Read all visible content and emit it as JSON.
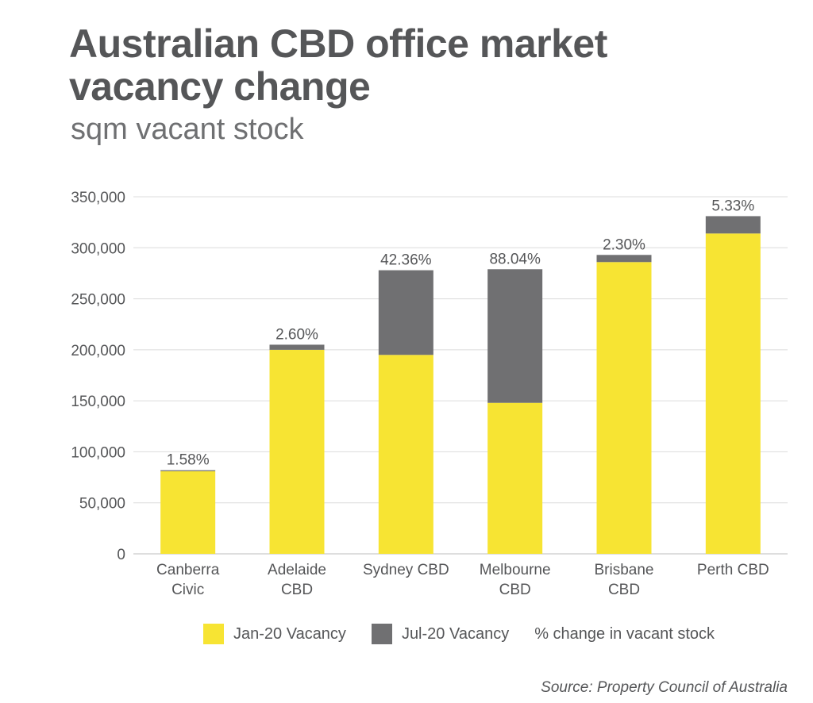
{
  "title_line1": "Australian CBD office market",
  "title_line2": "vacancy change",
  "subtitle": "sqm vacant stock",
  "source": "Source: Property Council of Australia",
  "colors": {
    "jan": "#f7e433",
    "jul": "#707072",
    "grid": "#dcdcdc",
    "text": "#555658"
  },
  "chart_data": {
    "type": "bar",
    "stacked": true,
    "title": "Australian CBD office market vacancy change",
    "subtitle": "sqm vacant stock",
    "categories": [
      [
        "Canberra",
        "Civic"
      ],
      [
        "Adelaide",
        "CBD"
      ],
      [
        "Sydney CBD"
      ],
      [
        "Melbourne",
        "CBD"
      ],
      [
        "Brisbane",
        "CBD"
      ],
      [
        "Perth CBD"
      ]
    ],
    "series": [
      {
        "name": "Jan-20 Vacancy",
        "values": [
          81000,
          200000,
          195000,
          148000,
          286000,
          314000
        ]
      },
      {
        "name": "Jul-20 Vacancy",
        "values": [
          1000,
          5000,
          83000,
          131000,
          7000,
          17000
        ]
      }
    ],
    "annotations": {
      "name": "% change in vacant stock",
      "values": [
        "1.58%",
        "2.60%",
        "42.36%",
        "88.04%",
        "2.30%",
        "5.33%"
      ]
    },
    "ylim": [
      0,
      350000
    ],
    "yticks": [
      0,
      50000,
      100000,
      150000,
      200000,
      250000,
      300000,
      350000
    ],
    "ytick_labels": [
      "0",
      "50,000",
      "100,000",
      "150,000",
      "200,000",
      "250,000",
      "300,000",
      "350,000"
    ],
    "grid": true,
    "legend_position": "bottom"
  }
}
